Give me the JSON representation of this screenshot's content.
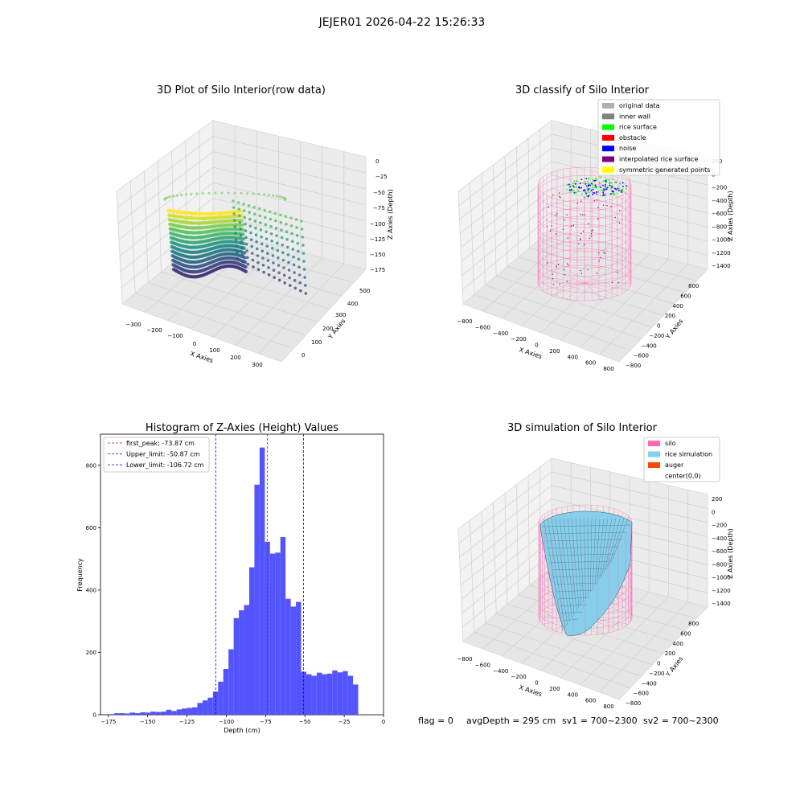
{
  "suptitle": "JEJER01 2026-04-22 15:26:33",
  "status_line": {
    "flag": "flag = 0",
    "avg_depth": "avgDepth = 295 cm",
    "sv1": "sv1 = 700~2300",
    "sv2": "sv2 = 700~2300"
  },
  "colors": {
    "histogram_bar": "#4b4bff",
    "first_peak_line": "#ff0000",
    "limit_lines": "#0000ff",
    "silo_wireframe": "#ff69b4",
    "rice_simulation": "#87ceeb",
    "auger": "#ff4500",
    "pane_gray": "#f2f2f2"
  },
  "panels": {
    "raw_3d": {
      "title": "3D Plot of Silo Interior(row data)",
      "xlabel": "X Axies",
      "ylabel": "Y Axies",
      "zlabel": "Z Axies (Depth)",
      "xticks": [
        "−300",
        "−200",
        "−100",
        "0",
        "100",
        "200",
        "300"
      ],
      "yticks": [
        "0",
        "100",
        "200",
        "300",
        "400",
        "500"
      ],
      "zticks": [
        "0",
        "−25",
        "−50",
        "−75",
        "−100",
        "−125",
        "−150",
        "−175"
      ],
      "colormap": "viridis"
    },
    "classify_3d": {
      "title": "3D classify of Silo Interior",
      "xlabel": "X Axies",
      "ylabel": "Y Axies",
      "zlabel": "Z Axies (Depth)",
      "xticks": [
        "−800",
        "−600",
        "−400",
        "−200",
        "0",
        "200",
        "400",
        "600",
        "800"
      ],
      "yticks": [
        "−800",
        "−600",
        "−400",
        "−200",
        "0",
        "200",
        "400",
        "600",
        "800"
      ],
      "zticks": [
        "200",
        "0",
        "−200",
        "−400",
        "−600",
        "−800",
        "−1000",
        "−1200",
        "−1400"
      ],
      "legend": [
        {
          "label": "original data",
          "color": "#b0b0b0"
        },
        {
          "label": "inner wall",
          "color": "#808080"
        },
        {
          "label": "rice surface",
          "color": "#00ff00"
        },
        {
          "label": "obstacle",
          "color": "#ff0000"
        },
        {
          "label": "noise",
          "color": "#0000ff"
        },
        {
          "label": "interpolated rice surface",
          "color": "#800080"
        },
        {
          "label": "symmetric generated points",
          "color": "#ffff00"
        }
      ]
    },
    "simulation_3d": {
      "title": "3D simulation of Silo Interior",
      "xlabel": "X Axies",
      "ylabel": "Y Axies",
      "zlabel": "Z Axies (Depth)",
      "xticks": [
        "−800",
        "−600",
        "−400",
        "−200",
        "0",
        "200",
        "400",
        "600",
        "800"
      ],
      "yticks": [
        "−800",
        "−600",
        "−400",
        "−200",
        "0",
        "200",
        "400",
        "600",
        "800"
      ],
      "zticks": [
        "200",
        "0",
        "−200",
        "−400",
        "−600",
        "−800",
        "−1000",
        "−1200",
        "−1400"
      ],
      "legend": [
        {
          "label": "silo",
          "color": "#ff69b4"
        },
        {
          "label": "rice simulation",
          "color": "#87ceeb"
        },
        {
          "label": "auger",
          "color": "#ff4500"
        },
        {
          "label": "center(0,0)",
          "color": ""
        }
      ]
    }
  },
  "chart_data": [
    {
      "type": "bar",
      "title": "Histogram of Z-Axies (Height) Values",
      "xlabel": "Depth (cm)",
      "ylabel": "Frequency",
      "xlim": [
        -180,
        0
      ],
      "ylim": [
        0,
        900
      ],
      "xticks": [
        -175,
        -150,
        -125,
        -100,
        -75,
        -50,
        -25,
        0
      ],
      "xtick_labels": [
        "−175",
        "−150",
        "−125",
        "−100",
        "−75",
        "−50",
        "−25",
        "0"
      ],
      "yticks": [
        0,
        200,
        400,
        600,
        800
      ],
      "bin_start": -174.5,
      "bin_width": 3.3,
      "values": [
        2,
        5,
        5,
        4,
        7,
        5,
        8,
        7,
        10,
        9,
        10,
        16,
        12,
        17,
        20,
        22,
        24,
        38,
        46,
        55,
        74,
        106,
        147,
        210,
        310,
        335,
        352,
        473,
        738,
        857,
        555,
        517,
        520,
        570,
        372,
        347,
        362,
        138,
        130,
        125,
        135,
        130,
        132,
        142,
        136,
        140,
        125,
        97
      ],
      "vlines": [
        {
          "name": "first_peak",
          "x": -73.87,
          "color": "#ff0000",
          "legend": "first_peak: -73.87 cm"
        },
        {
          "name": "Upper_limit",
          "x": -50.87,
          "color": "#0000ff",
          "legend": "Upper_limit: -50.87 cm"
        },
        {
          "name": "Lower_limit",
          "x": -106.72,
          "color": "#0000ff",
          "legend": "Lower_limit: -106.72 cm"
        }
      ],
      "grid": false,
      "legend_position": "upper-left"
    }
  ]
}
